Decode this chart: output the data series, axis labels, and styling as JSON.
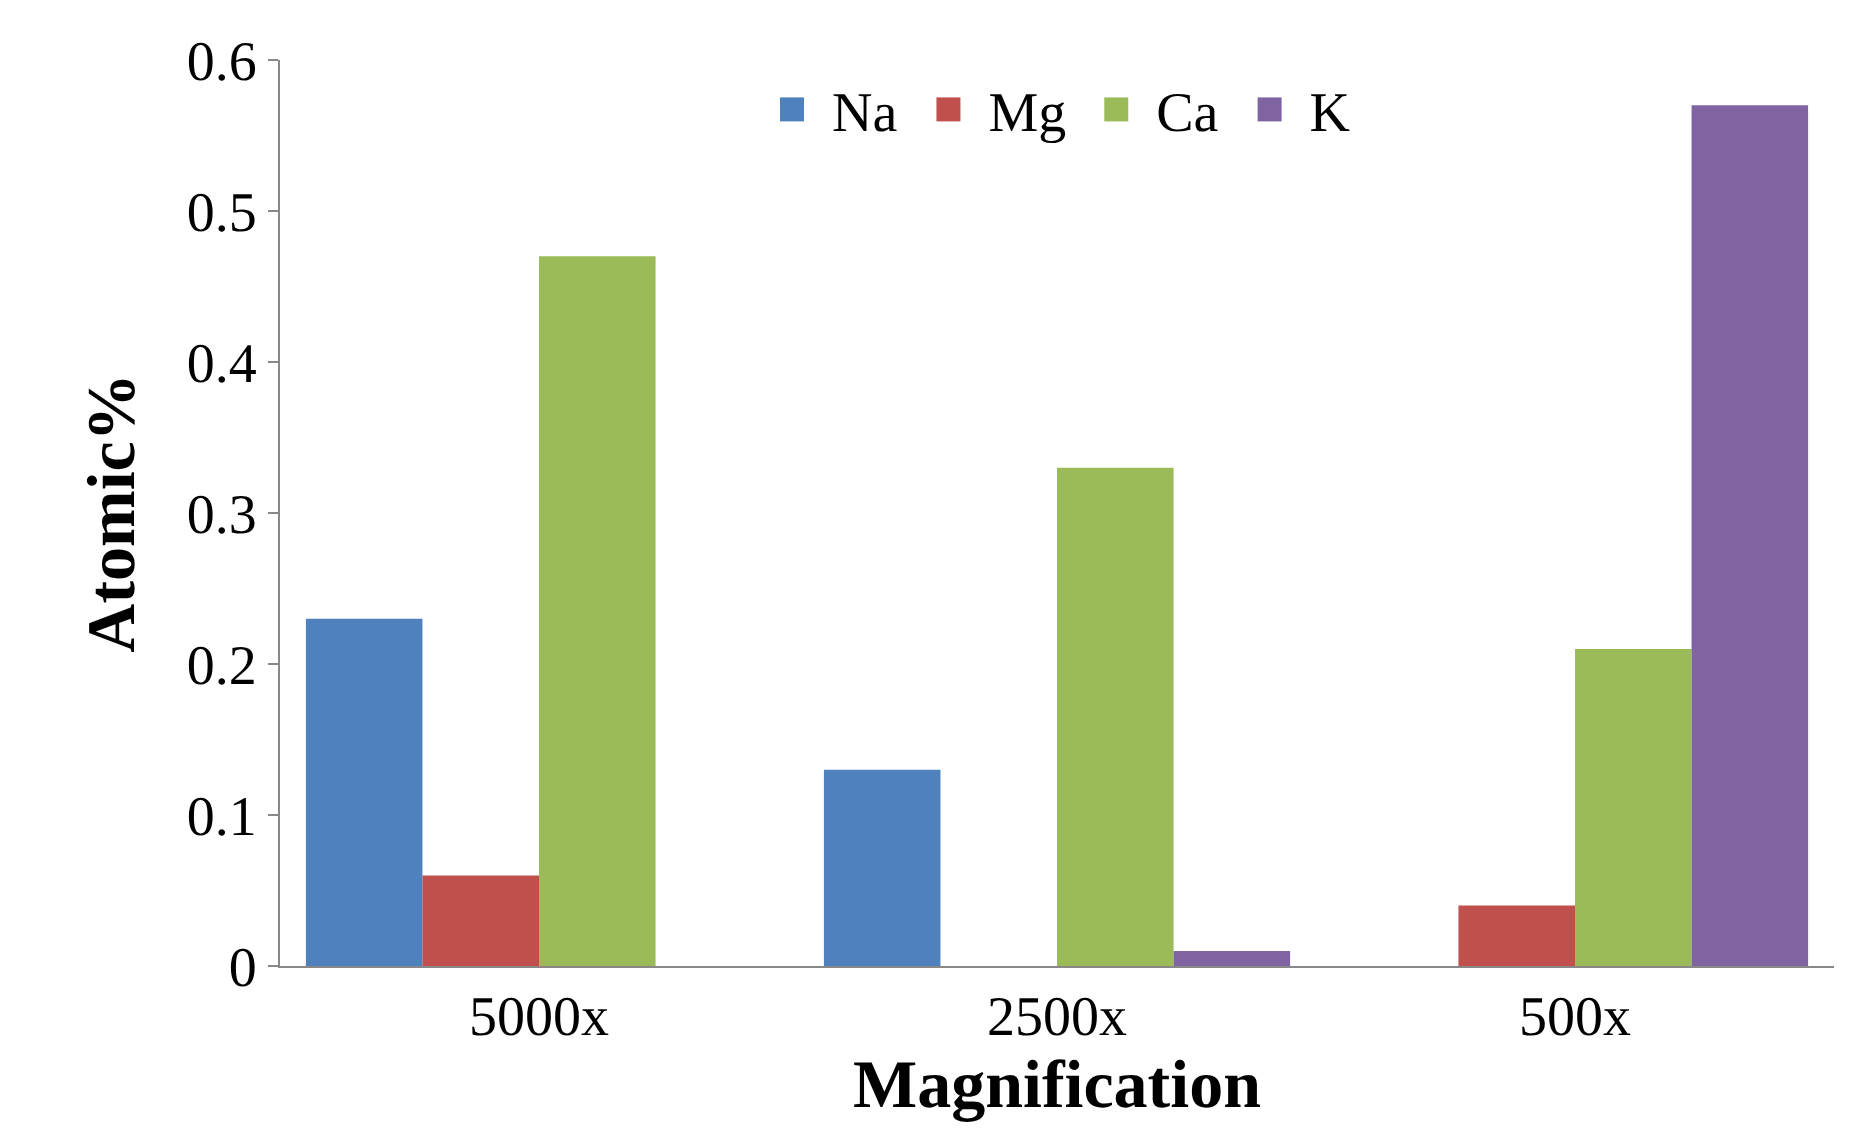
{
  "chart_data": {
    "type": "bar",
    "xlabel": "Magnification",
    "ylabel": "Atomic%",
    "categories": [
      "5000x",
      "2500x",
      "500x"
    ],
    "series": [
      {
        "name": "Na",
        "color": "#4f81bd",
        "values": [
          0.23,
          0.13,
          0
        ]
      },
      {
        "name": "Mg",
        "color": "#c0504d",
        "values": [
          0.06,
          0,
          0.04
        ]
      },
      {
        "name": "Ca",
        "color": "#9bbb59",
        "values": [
          0.47,
          0.33,
          0.21
        ]
      },
      {
        "name": "K",
        "color": "#8064a2",
        "values": [
          0,
          0.01,
          0.57
        ]
      }
    ],
    "ylim": [
      0,
      0.6
    ],
    "yticks": [
      0,
      0.1,
      0.2,
      0.3,
      0.4,
      0.5,
      0.6
    ],
    "legend": "top"
  }
}
